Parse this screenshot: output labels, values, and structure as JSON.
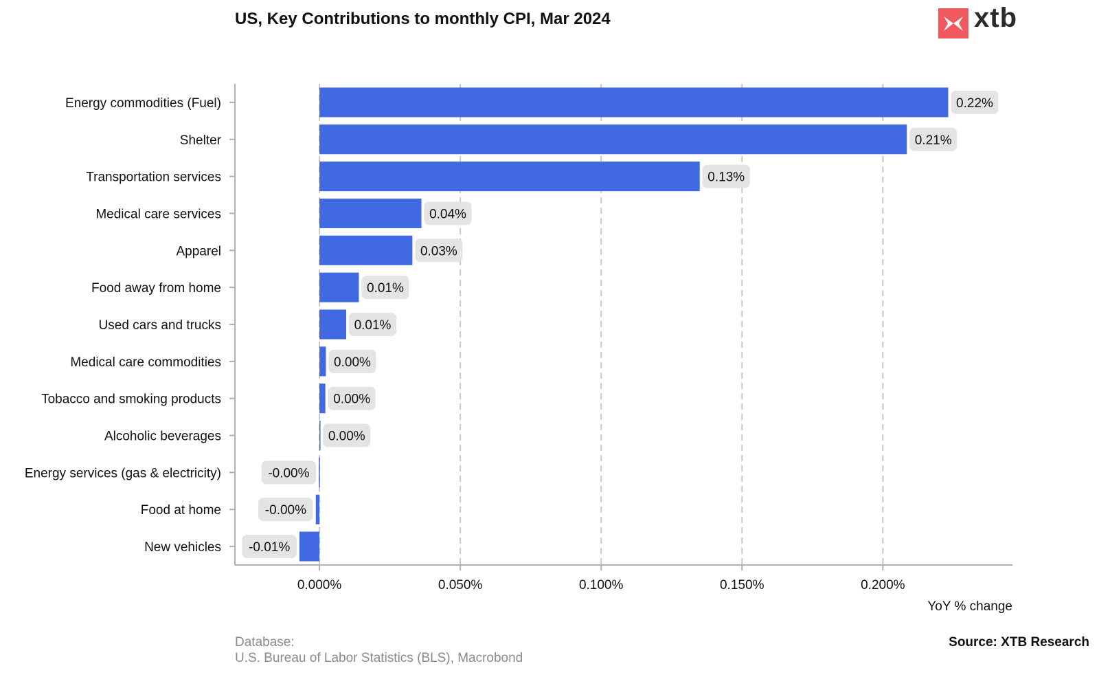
{
  "title": "US, Key Contributions to monthly CPI, Mar 2024",
  "logo": {
    "text": "xtb",
    "icon": "xtb-logo-icon",
    "color": "#f05a5f"
  },
  "footer": {
    "database_label": "Database:",
    "database_source": "U.S. Bureau of Labor Statistics (BLS), Macrobond",
    "source": "Source: XTB Research"
  },
  "chart_data": {
    "type": "bar",
    "orientation": "horizontal",
    "title": "US, Key Contributions to monthly CPI, Mar 2024",
    "xlabel": "YoY % change",
    "ylabel": "",
    "xlim": [
      -0.03,
      0.246
    ],
    "xticks": [
      0.0,
      0.05,
      0.1,
      0.15,
      0.2
    ],
    "xtick_labels": [
      "0.000%",
      "0.050%",
      "0.100%",
      "0.150%",
      "0.200%"
    ],
    "grid": "vertical dashed",
    "bar_color": "#4169e1",
    "categories": [
      "Energy commodities (Fuel)",
      "Shelter",
      "Transportation services",
      "Medical care services",
      "Apparel",
      "Food away from home",
      "Used cars and trucks",
      "Medical care commodities",
      "Tobacco and smoking products",
      "Alcoholic beverages",
      "Energy services (gas & electricity)",
      "Food at home",
      "New vehicles"
    ],
    "values": [
      0.2232,
      0.2085,
      0.135,
      0.0362,
      0.033,
      0.014,
      0.0095,
      0.0023,
      0.0021,
      0.0003,
      -0.0002,
      -0.0013,
      -0.0071
    ],
    "data_labels": [
      "0.22%",
      "0.21%",
      "0.13%",
      "0.04%",
      "0.03%",
      "0.01%",
      "0.01%",
      "0.00%",
      "0.00%",
      "0.00%",
      "-0.00%",
      "-0.00%",
      "-0.01%"
    ]
  }
}
